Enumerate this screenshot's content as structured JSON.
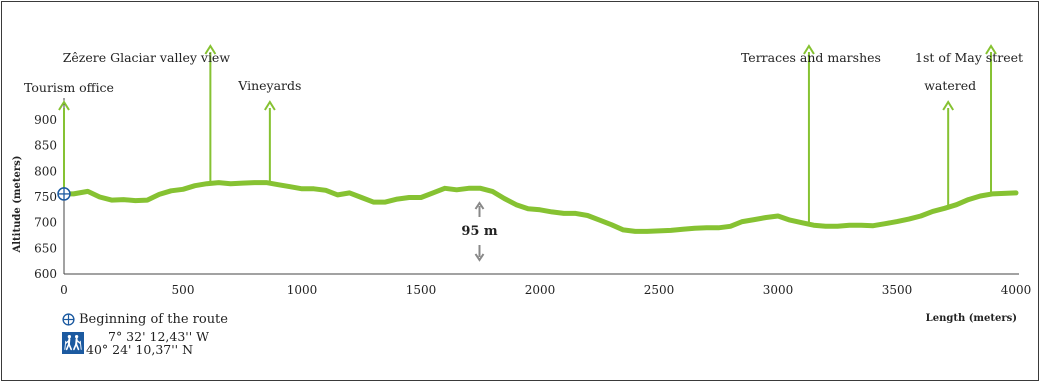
{
  "chart_data": {
    "type": "line",
    "title": "",
    "xlabel": "Length (meters)",
    "ylabel": "Altitude (meters)",
    "xlim": [
      0,
      4000
    ],
    "ylim": [
      600,
      900
    ],
    "x_ticks": [
      0,
      500,
      1000,
      1500,
      2000,
      2500,
      3000,
      3500,
      4000
    ],
    "y_ticks": [
      600,
      650,
      700,
      750,
      800,
      850,
      900
    ],
    "grid": false,
    "line_color": "#86c232",
    "series": [
      {
        "x": [
          0,
          40,
          100,
          150,
          200,
          250,
          300,
          350,
          400,
          450,
          500,
          550,
          600,
          650,
          700,
          750,
          800,
          850,
          900,
          950,
          1000,
          1050,
          1100,
          1150,
          1200,
          1250,
          1300,
          1350,
          1400,
          1450,
          1500,
          1550,
          1600,
          1650,
          1700,
          1750,
          1800,
          1850,
          1900,
          1950,
          2000,
          2050,
          2100,
          2150,
          2200,
          2250,
          2300,
          2350,
          2400,
          2450,
          2500,
          2550,
          2600,
          2650,
          2700,
          2750,
          2800,
          2850,
          2900,
          2950,
          3000,
          3050,
          3100,
          3150,
          3200,
          3250,
          3300,
          3350,
          3400,
          3450,
          3500,
          3550,
          3600,
          3650,
          3700,
          3750,
          3800,
          3850,
          3900,
          3950,
          4000
        ],
        "values": [
          756,
          756,
          761,
          750,
          744,
          745,
          743,
          744,
          755,
          762,
          765,
          772,
          776,
          778,
          776,
          777,
          778,
          778,
          774,
          770,
          766,
          766,
          763,
          754,
          758,
          749,
          740,
          740,
          746,
          749,
          749,
          758,
          767,
          764,
          767,
          767,
          761,
          747,
          735,
          727,
          725,
          721,
          718,
          718,
          714,
          705,
          696,
          686,
          683,
          683,
          684,
          685,
          687,
          689,
          690,
          690,
          693,
          702,
          706,
          710,
          713,
          705,
          700,
          695,
          693,
          693,
          695,
          695,
          694,
          698,
          702,
          707,
          713,
          722,
          728,
          735,
          745,
          752,
          756,
          757,
          758
        ]
      }
    ],
    "annotations": [
      {
        "x": 0,
        "text": "Tourism office"
      },
      {
        "x": 615,
        "text": "Zêzere Glaciar valley view"
      },
      {
        "x": 865,
        "text": "Vineyards"
      },
      {
        "x": 3130,
        "text": "Terraces and marshes"
      },
      {
        "x": 3715,
        "text": "watered"
      },
      {
        "x": 3895,
        "text": "1st of May street"
      }
    ],
    "elevation_difference": {
      "x": 1750,
      "text": "95 m"
    },
    "legend": {
      "start_label": "Beginning of the route",
      "longitude": "7° 32' 12,43'' W",
      "latitude": "40° 24' 10,37'' N"
    }
  }
}
